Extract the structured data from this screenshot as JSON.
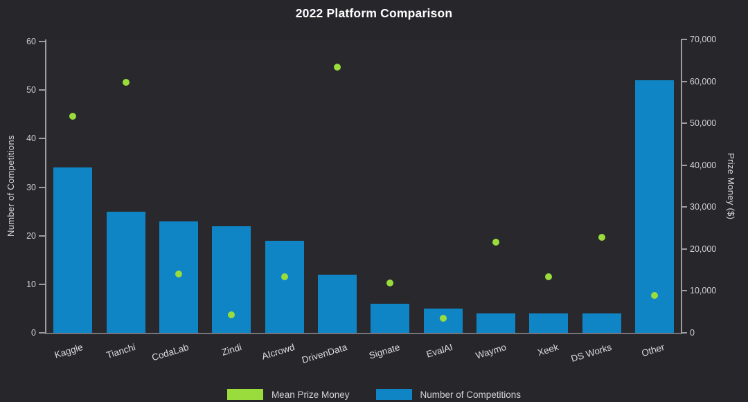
{
  "chart_data": {
    "type": "bar+scatter",
    "title": "2022 Platform Comparison",
    "categories": [
      "Kaggle",
      "Tianchi",
      "CodaLab",
      "Zindi",
      "AIcrowd",
      "DrivenData",
      "Signate",
      "EvalAI",
      "Waymo",
      "Xeek",
      "DS Works",
      "Other"
    ],
    "series": [
      {
        "name": "Number of Competitions",
        "type": "bar",
        "axis": "left",
        "color": "#1085c6",
        "values": [
          34,
          25,
          23,
          22,
          19,
          12,
          6,
          5,
          4,
          4,
          4,
          52
        ]
      },
      {
        "name": "Mean Prize Money",
        "type": "scatter",
        "axis": "right",
        "color": "#9adc3c",
        "values": [
          51700,
          59700,
          14000,
          4300,
          13400,
          63400,
          11900,
          3500,
          21700,
          13300,
          22800,
          8900
        ]
      }
    ],
    "left_axis": {
      "label": "Number of Competitions",
      "min": 0,
      "max": 60,
      "step": 10,
      "ticks": [
        "0",
        "10",
        "20",
        "30",
        "40",
        "50",
        "60"
      ]
    },
    "right_axis": {
      "label": "Prize Money ($)",
      "min": 0,
      "max": 70000,
      "step": 10000,
      "ticks": [
        "0",
        "10,000",
        "20,000",
        "30,000",
        "40,000",
        "50,000",
        "60,000",
        "70,000"
      ]
    },
    "grid": false,
    "legend_position": "bottom",
    "background_color": "#27272b",
    "text_color": "#ffffff"
  }
}
